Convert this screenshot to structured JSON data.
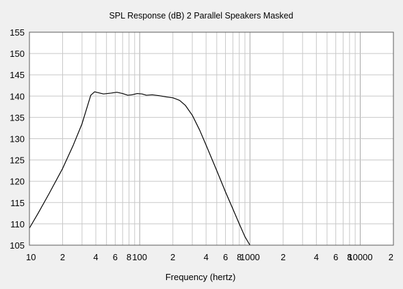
{
  "chart_data": {
    "type": "line",
    "title": "SPL Response (dB)   2 Parallel Speakers   Masked",
    "xlabel": "Frequency (hertz)",
    "ylabel": "",
    "x_scale": "log",
    "xlim": [
      10,
      20000
    ],
    "ylim": [
      105,
      155
    ],
    "grid": true,
    "y_ticks": [
      "155",
      "150",
      "145",
      "140",
      "135",
      "130",
      "125",
      "120",
      "115",
      "110",
      "105"
    ],
    "x_tick_labels": [
      {
        "value": 10,
        "label": "10"
      },
      {
        "value": 20,
        "label": "2"
      },
      {
        "value": 40,
        "label": "4"
      },
      {
        "value": 60,
        "label": "6"
      },
      {
        "value": 80,
        "label": "8"
      },
      {
        "value": 100,
        "label": "100"
      },
      {
        "value": 200,
        "label": "2"
      },
      {
        "value": 400,
        "label": "4"
      },
      {
        "value": 600,
        "label": "6"
      },
      {
        "value": 800,
        "label": "8"
      },
      {
        "value": 1000,
        "label": "1000"
      },
      {
        "value": 2000,
        "label": "2"
      },
      {
        "value": 4000,
        "label": "4"
      },
      {
        "value": 6000,
        "label": "6"
      },
      {
        "value": 8000,
        "label": "8"
      },
      {
        "value": 10000,
        "label": "10000"
      },
      {
        "value": 20000,
        "label": "2"
      }
    ],
    "series": [
      {
        "points": [
          [
            10,
            109.0
          ],
          [
            12,
            112.5
          ],
          [
            15,
            117.0
          ],
          [
            20,
            123.0
          ],
          [
            25,
            128.5
          ],
          [
            30,
            133.5
          ],
          [
            33,
            137.0
          ],
          [
            36,
            140.2
          ],
          [
            39,
            141.0
          ],
          [
            42,
            140.8
          ],
          [
            47,
            140.5
          ],
          [
            55,
            140.7
          ],
          [
            62,
            140.9
          ],
          [
            70,
            140.6
          ],
          [
            78,
            140.2
          ],
          [
            85,
            140.3
          ],
          [
            95,
            140.6
          ],
          [
            105,
            140.5
          ],
          [
            115,
            140.2
          ],
          [
            130,
            140.3
          ],
          [
            150,
            140.1
          ],
          [
            175,
            139.8
          ],
          [
            200,
            139.6
          ],
          [
            230,
            139.0
          ],
          [
            260,
            137.8
          ],
          [
            300,
            135.5
          ],
          [
            350,
            132.0
          ],
          [
            400,
            128.5
          ],
          [
            500,
            122.5
          ],
          [
            600,
            117.5
          ],
          [
            700,
            113.5
          ],
          [
            800,
            110.0
          ],
          [
            900,
            107.0
          ],
          [
            1000,
            105.0
          ]
        ]
      }
    ],
    "colors": {
      "line": "#000000",
      "grid": "#c8c8c8",
      "plot_bg": "#ffffff",
      "frame": "#5a5a5a"
    }
  }
}
